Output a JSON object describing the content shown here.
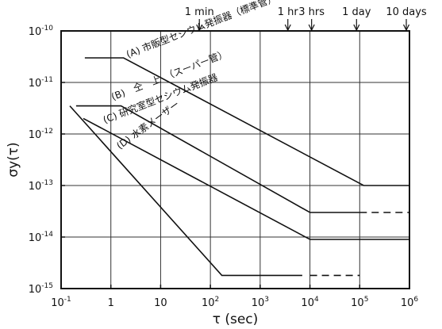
{
  "chart_data": {
    "type": "line",
    "xlabel": "τ (sec)",
    "ylabel": "σy(τ)",
    "xscale": "log",
    "yscale": "log",
    "xlim": [
      0.1,
      1000000
    ],
    "ylim": [
      1e-15,
      1e-10
    ],
    "grid": true,
    "x_ticks": [
      {
        "value": 0.1,
        "base": "10",
        "exp": "-1"
      },
      {
        "value": 1,
        "text": "1"
      },
      {
        "value": 10,
        "text": "10"
      },
      {
        "value": 100,
        "base": "10",
        "exp": "2"
      },
      {
        "value": 1000,
        "base": "10",
        "exp": "3"
      },
      {
        "value": 10000,
        "base": "10",
        "exp": "4"
      },
      {
        "value": 100000,
        "base": "10",
        "exp": "5"
      },
      {
        "value": 1000000,
        "base": "10",
        "exp": "6"
      }
    ],
    "y_ticks": [
      {
        "value": 1e-10,
        "base": "10",
        "exp": "-10"
      },
      {
        "value": 1e-11,
        "base": "10",
        "exp": "-11"
      },
      {
        "value": 1e-12,
        "base": "10",
        "exp": "-12"
      },
      {
        "value": 1e-13,
        "base": "10",
        "exp": "-13"
      },
      {
        "value": 1e-14,
        "base": "10",
        "exp": "-14"
      },
      {
        "value": 1e-15,
        "base": "10",
        "exp": "-15"
      }
    ],
    "time_markers": [
      {
        "label": "1 min",
        "value": 60
      },
      {
        "label": "1 hr",
        "value": 3600
      },
      {
        "label": "3 hrs",
        "value": 10800
      },
      {
        "label": "1 day",
        "value": 86400
      },
      {
        "label": "10 days",
        "value": 864000
      }
    ],
    "series": [
      {
        "name": "(A) 市販型セシウム発振器（標準管）",
        "label_at": [
          2.2,
          3e-11
        ],
        "label_angle": -21,
        "points": [
          [
            0.3,
            3e-11
          ],
          [
            1.8,
            3e-11
          ],
          [
            120000,
            1e-13
          ],
          [
            1000000,
            1e-13
          ]
        ]
      },
      {
        "name": "(B)　仝　上　（スーパー管）",
        "label_at": [
          1.1,
          4.5e-12
        ],
        "label_angle": -21,
        "points": [
          [
            0.2,
            3.5e-12
          ],
          [
            1.6,
            3.5e-12
          ],
          [
            10000,
            3e-14
          ],
          [
            100000,
            3e-14
          ]
        ],
        "dashed": [
          [
            100000,
            3e-14
          ],
          [
            1000000,
            3e-14
          ]
        ]
      },
      {
        "name": "(C) 研究室型セシウム発振器",
        "label_at": [
          0.75,
          1.6e-12
        ],
        "label_angle": -21,
        "points": [
          [
            0.28,
            2e-12
          ],
          [
            10000,
            9e-15
          ],
          [
            1000000,
            9e-15
          ]
        ]
      },
      {
        "name": "(D) 水素メーザー",
        "label_at": [
          1.5,
          5e-13
        ],
        "label_angle": -36,
        "points": [
          [
            0.15,
            3.5e-12
          ],
          [
            170,
            1.8e-15
          ],
          [
            7000,
            1.8e-15
          ]
        ],
        "dashed": [
          [
            10000,
            1.8e-15
          ],
          [
            100000,
            1.8e-15
          ]
        ]
      }
    ]
  }
}
